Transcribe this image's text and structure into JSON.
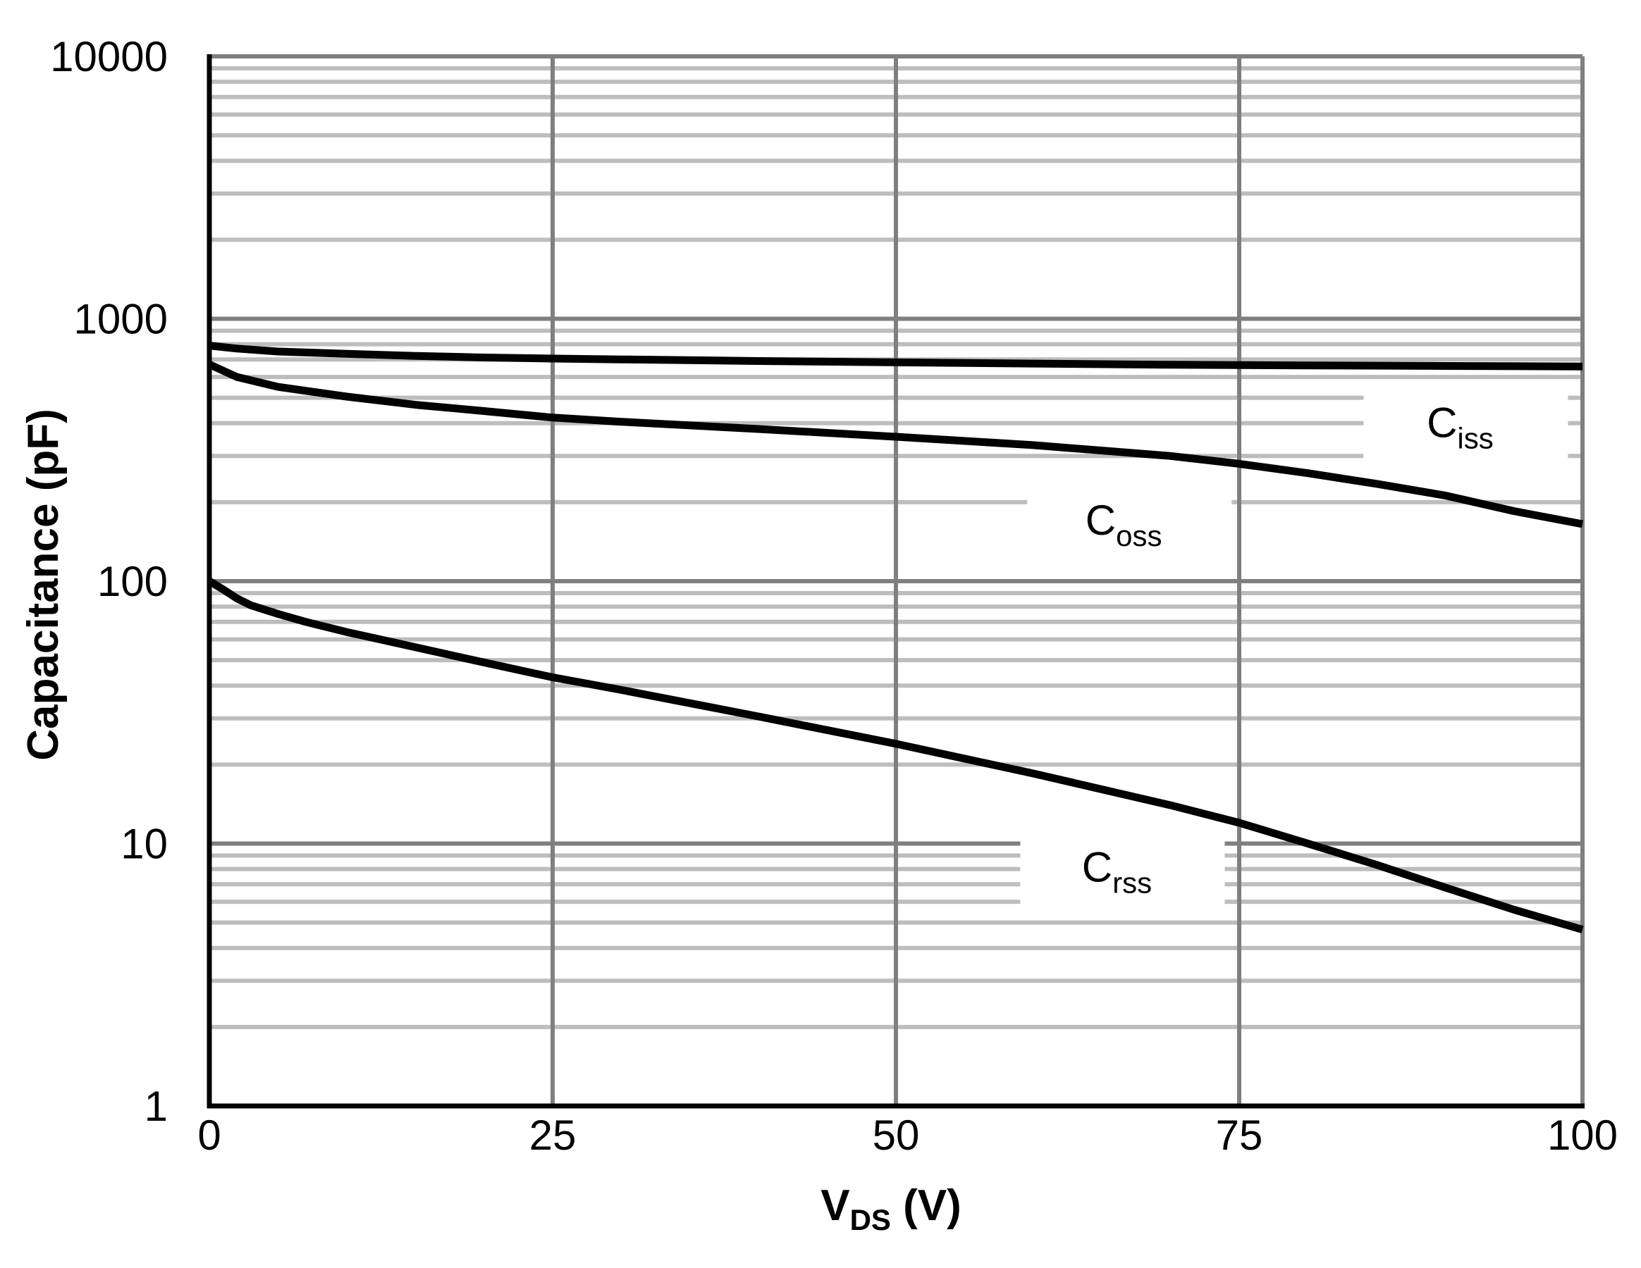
{
  "chart_data": {
    "type": "line",
    "title": "",
    "xlabel": {
      "main": "V",
      "sub": "DS",
      "suffix": " (V)"
    },
    "ylabel": "Capacitance (pF)",
    "xlim": [
      0,
      100
    ],
    "ylim": [
      1,
      10000
    ],
    "yscale": "log",
    "x_ticks": [
      0,
      25,
      50,
      75,
      100
    ],
    "x_tick_labels": [
      "0",
      "25",
      "50",
      "75",
      "100"
    ],
    "y_ticks": [
      1,
      10,
      100,
      1000,
      10000
    ],
    "y_tick_labels": [
      "1",
      "10",
      "100",
      "1000",
      "10000"
    ],
    "grid": true,
    "series": [
      {
        "name": "Ciss",
        "label_main": "C",
        "label_sub": "iss",
        "label_pos": [
          91.5,
          400
        ],
        "x": [
          0,
          2,
          5,
          10,
          15,
          20,
          25,
          30,
          40,
          50,
          60,
          70,
          80,
          90,
          100
        ],
        "values": [
          790,
          770,
          750,
          735,
          722,
          712,
          705,
          700,
          690,
          682,
          675,
          668,
          664,
          661,
          658
        ]
      },
      {
        "name": "Coss",
        "label_main": "C",
        "label_sub": "oss",
        "label_pos": [
          67,
          170
        ],
        "x": [
          0,
          2,
          5,
          10,
          15,
          20,
          25,
          30,
          40,
          50,
          60,
          70,
          75,
          80,
          85,
          90,
          95,
          100
        ],
        "values": [
          670,
          600,
          550,
          505,
          470,
          445,
          420,
          405,
          380,
          355,
          330,
          300,
          280,
          258,
          235,
          212,
          185,
          165
        ]
      },
      {
        "name": "Crss",
        "label_main": "C",
        "label_sub": "rss",
        "label_pos": [
          66.5,
          8.1
        ],
        "x": [
          0,
          1,
          2,
          3,
          5,
          7,
          10,
          15,
          20,
          25,
          30,
          40,
          50,
          60,
          70,
          75,
          80,
          85,
          90,
          95,
          100
        ],
        "values": [
          100,
          93,
          86,
          81,
          75,
          70,
          64,
          56,
          49,
          43,
          38.5,
          30.5,
          24,
          18.5,
          14,
          12,
          10,
          8.3,
          6.8,
          5.6,
          4.7
        ]
      }
    ]
  }
}
